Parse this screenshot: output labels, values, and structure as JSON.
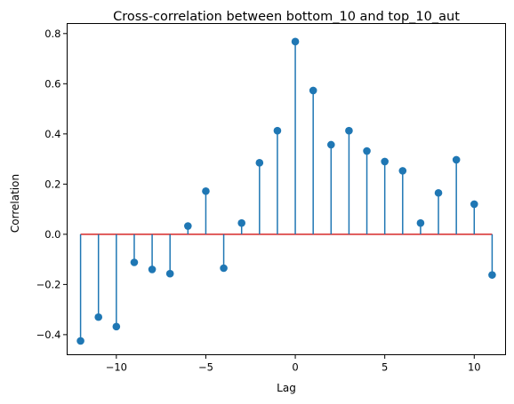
{
  "chart_data": {
    "type": "stem",
    "title": "Cross-correlation between bottom_10 and top_10_aut",
    "xlabel": "Lag",
    "ylabel": "Correlation",
    "xlim": [
      -12.75,
      11.75
    ],
    "ylim": [
      -0.48,
      0.84
    ],
    "xticks": [
      -10,
      -5,
      0,
      5,
      10
    ],
    "xtick_labels": [
      "−10",
      "−5",
      "0",
      "5",
      "10"
    ],
    "yticks": [
      -0.4,
      -0.2,
      0.0,
      0.2,
      0.4,
      0.6,
      0.8
    ],
    "ytick_labels": [
      "−0.4",
      "−0.2",
      "0.0",
      "0.2",
      "0.4",
      "0.6",
      "0.8"
    ],
    "baseline": 0,
    "grid": false,
    "colors": {
      "stem": "#1f77b4",
      "baseline": "#d62728"
    },
    "x": [
      -12,
      -11,
      -10,
      -9,
      -8,
      -7,
      -6,
      -5,
      -4,
      -3,
      -2,
      -1,
      0,
      1,
      2,
      3,
      4,
      5,
      6,
      7,
      8,
      9,
      10,
      11
    ],
    "values": [
      -0.425,
      -0.33,
      -0.368,
      -0.112,
      -0.14,
      -0.157,
      0.033,
      0.172,
      -0.135,
      0.045,
      0.285,
      0.413,
      0.768,
      0.573,
      0.357,
      0.413,
      0.332,
      0.29,
      0.253,
      0.045,
      0.165,
      0.297,
      0.12,
      -0.162
    ]
  }
}
